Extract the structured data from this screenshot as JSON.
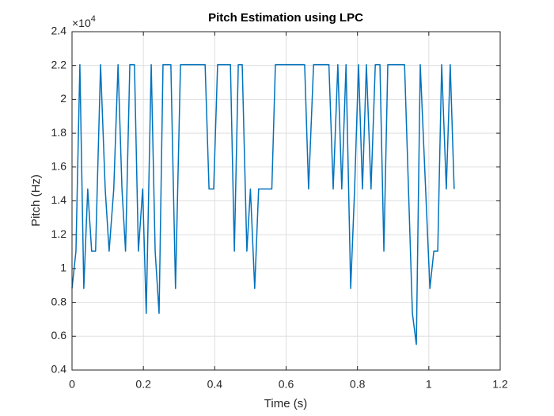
{
  "chart_data": {
    "type": "line",
    "title": "Pitch Estimation using LPC",
    "x_label": "Time (s)",
    "y_label": "Pitch (Hz)",
    "y_multiplier": {
      "base": "×10",
      "exponent": "4"
    },
    "x": [
      0,
      0.011,
      0.022,
      0.033,
      0.044,
      0.055,
      0.066,
      0.08,
      0.093,
      0.104,
      0.117,
      0.129,
      0.14,
      0.15,
      0.162,
      0.175,
      0.186,
      0.198,
      0.208,
      0.222,
      0.233,
      0.244,
      0.255,
      0.277,
      0.29,
      0.304,
      0.373,
      0.384,
      0.397,
      0.408,
      0.444,
      0.455,
      0.466,
      0.477,
      0.49,
      0.5,
      0.512,
      0.523,
      0.56,
      0.57,
      0.652,
      0.663,
      0.677,
      0.72,
      0.732,
      0.745,
      0.756,
      0.768,
      0.781,
      0.792,
      0.803,
      0.814,
      0.825,
      0.838,
      0.85,
      0.863,
      0.874,
      0.885,
      0.932,
      0.954,
      0.965,
      0.976,
      1.003,
      1.014,
      1.025,
      1.036,
      1.049,
      1.06,
      1.071
    ],
    "series": [
      {
        "color": "#0072bd",
        "values": [
          0.882,
          1.1025,
          2.205,
          0.882,
          1.47,
          1.1025,
          1.1025,
          2.205,
          1.47,
          1.1025,
          1.47,
          2.205,
          1.47,
          1.1025,
          2.205,
          2.205,
          1.1025,
          1.47,
          0.735,
          2.205,
          1.1025,
          0.735,
          2.205,
          2.205,
          0.882,
          2.205,
          2.205,
          1.47,
          1.47,
          2.205,
          2.205,
          1.1025,
          2.205,
          2.205,
          1.1025,
          1.47,
          0.882,
          1.47,
          1.47,
          2.205,
          2.205,
          1.47,
          2.205,
          2.205,
          1.47,
          2.205,
          1.47,
          2.205,
          0.882,
          1.47,
          2.205,
          1.47,
          2.205,
          1.47,
          2.205,
          2.205,
          1.1025,
          2.205,
          2.205,
          0.735,
          0.5513,
          2.205,
          0.882,
          1.1025,
          1.1025,
          2.205,
          1.47,
          2.205,
          1.47
        ]
      }
    ],
    "xlim": [
      0,
      1.2
    ],
    "xticks": [
      0,
      0.2,
      0.4,
      0.6,
      0.8,
      1,
      1.2
    ],
    "ylim": [
      0.4,
      2.4
    ],
    "yticks": [
      0.4,
      0.6,
      0.8,
      1,
      1.2,
      1.4,
      1.6,
      1.8,
      2,
      2.2,
      2.4
    ],
    "grid": true
  }
}
